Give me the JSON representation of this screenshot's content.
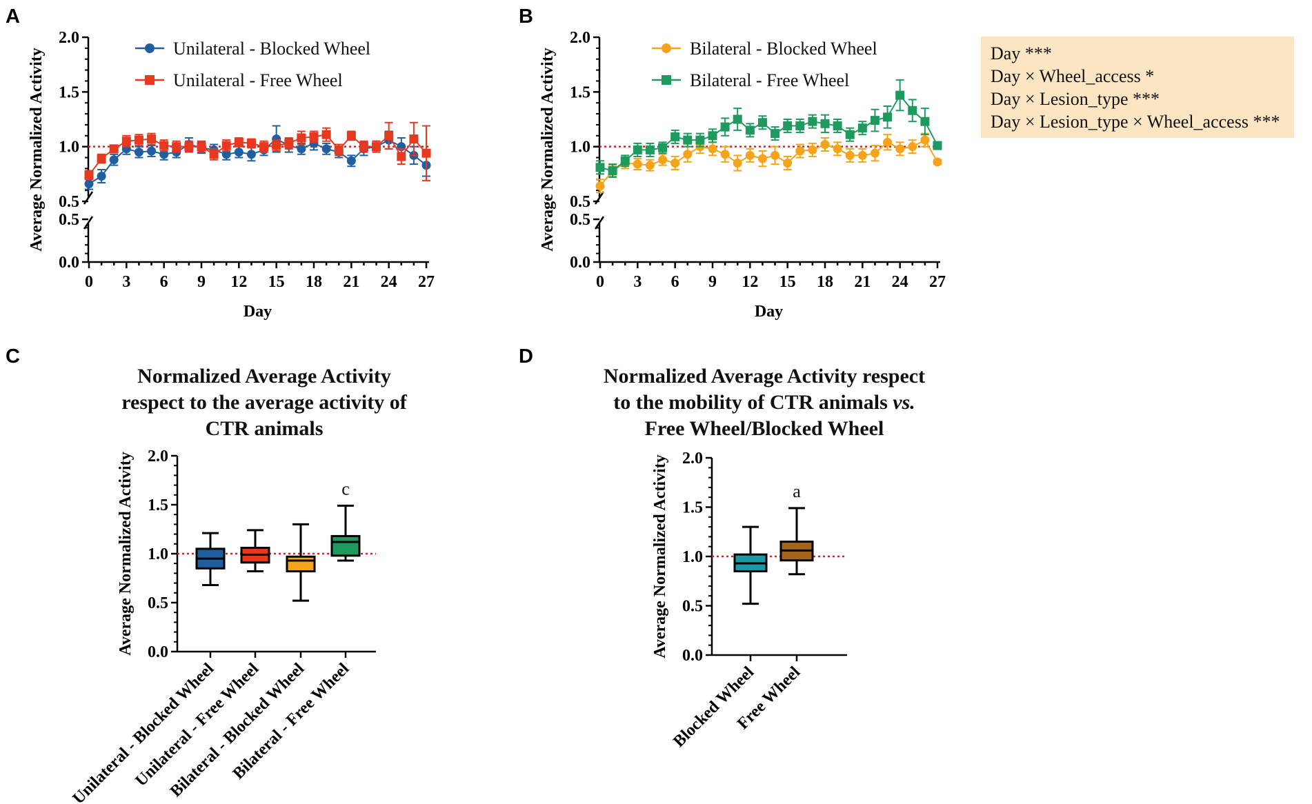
{
  "stats_box": {
    "lines": [
      "Day ***",
      "Day × Wheel_access *",
      "Day × Lesion_type ***",
      "Day × Lesion_type × Wheel_access ***"
    ]
  },
  "colors": {
    "unilateral_blocked": "#1f5fa0",
    "unilateral_free": "#e8381f",
    "bilateral_blocked": "#f5a31a",
    "bilateral_free": "#1f9a5e",
    "blocked_wheel_box": "#1b9aa6",
    "free_wheel_box": "#a2651b",
    "reference_line": "#d42020"
  },
  "chart_data": [
    {
      "panel": "A",
      "type": "line",
      "xlabel": "Day",
      "ylabel": "Average Normalized Activity",
      "x_ticks": [
        "0",
        "3",
        "6",
        "9",
        "12",
        "15",
        "18",
        "21",
        "24",
        "27"
      ],
      "y_ticks_upper": [
        "0.5",
        "1.0",
        "1.5",
        "2.0"
      ],
      "y_ticks_lower": [
        "0.0",
        "0.5"
      ],
      "ylim_upper": [
        0.5,
        2.0
      ],
      "ylim_lower": [
        0.0,
        0.5
      ],
      "reference_line": 1.0,
      "x": [
        0,
        1,
        2,
        3,
        4,
        5,
        6,
        7,
        8,
        9,
        10,
        11,
        12,
        13,
        14,
        15,
        16,
        17,
        18,
        19,
        20,
        21,
        22,
        23,
        24,
        25,
        26,
        27
      ],
      "series": [
        {
          "name": "Unilateral - Blocked Wheel",
          "marker": "circle",
          "values": [
            0.66,
            0.73,
            0.88,
            0.98,
            0.95,
            0.96,
            0.93,
            0.95,
            1.02,
            0.99,
            0.97,
            0.93,
            0.95,
            0.93,
            0.97,
            1.07,
            1.01,
            0.98,
            1.03,
            0.98,
            0.95,
            0.87,
            0.98,
            1.0,
            1.06,
            1.0,
            0.92,
            0.83
          ],
          "errors": [
            0.05,
            0.06,
            0.05,
            0.05,
            0.05,
            0.05,
            0.05,
            0.05,
            0.06,
            0.05,
            0.05,
            0.05,
            0.05,
            0.06,
            0.05,
            0.12,
            0.06,
            0.05,
            0.06,
            0.05,
            0.05,
            0.05,
            0.06,
            0.05,
            0.08,
            0.08,
            0.08,
            0.1
          ]
        },
        {
          "name": "Unilateral - Free Wheel",
          "marker": "square",
          "values": [
            0.74,
            0.89,
            0.98,
            1.05,
            1.06,
            1.07,
            1.01,
            1.0,
            1.0,
            1.0,
            0.93,
            1.01,
            1.04,
            1.03,
            1.0,
            1.01,
            1.03,
            1.08,
            1.09,
            1.11,
            0.97,
            1.1,
            1.0,
            1.0,
            1.1,
            0.91,
            1.07,
            0.94
          ],
          "errors": [
            0.04,
            0.04,
            0.03,
            0.05,
            0.05,
            0.05,
            0.05,
            0.05,
            0.05,
            0.05,
            0.05,
            0.05,
            0.04,
            0.04,
            0.05,
            0.05,
            0.05,
            0.06,
            0.05,
            0.06,
            0.05,
            0.04,
            0.05,
            0.05,
            0.12,
            0.07,
            0.15,
            0.25
          ]
        }
      ]
    },
    {
      "panel": "B",
      "type": "line",
      "xlabel": "Day",
      "ylabel": "Average Normalized Activity",
      "x_ticks": [
        "0",
        "3",
        "6",
        "9",
        "12",
        "15",
        "18",
        "21",
        "24",
        "27"
      ],
      "y_ticks_upper": [
        "0.5",
        "1.0",
        "1.5",
        "2.0"
      ],
      "y_ticks_lower": [
        "0.0",
        "0.5"
      ],
      "ylim_upper": [
        0.5,
        2.0
      ],
      "ylim_lower": [
        0.0,
        0.5
      ],
      "reference_line": 1.0,
      "x": [
        0,
        1,
        2,
        3,
        4,
        5,
        6,
        7,
        8,
        9,
        10,
        11,
        12,
        13,
        14,
        15,
        16,
        17,
        18,
        19,
        20,
        21,
        22,
        23,
        24,
        25,
        26,
        27
      ],
      "series": [
        {
          "name": "Bilateral - Blocked Wheel",
          "marker": "circle",
          "values": [
            0.64,
            0.78,
            0.85,
            0.84,
            0.83,
            0.88,
            0.85,
            0.93,
            1.0,
            0.98,
            0.93,
            0.85,
            0.92,
            0.89,
            0.92,
            0.85,
            0.96,
            0.97,
            1.02,
            0.98,
            0.92,
            0.92,
            0.94,
            1.04,
            0.98,
            1.0,
            1.06,
            0.86
          ],
          "errors": [
            0.06,
            0.05,
            0.05,
            0.05,
            0.05,
            0.05,
            0.06,
            0.07,
            0.06,
            0.06,
            0.07,
            0.07,
            0.06,
            0.07,
            0.08,
            0.06,
            0.06,
            0.06,
            0.06,
            0.06,
            0.06,
            0.06,
            0.07,
            0.07,
            0.06,
            0.06,
            0.06,
            0.02
          ]
        },
        {
          "name": "Bilateral - Free Wheel",
          "marker": "square",
          "values": [
            0.81,
            0.78,
            0.87,
            0.97,
            0.97,
            0.99,
            1.09,
            1.06,
            1.06,
            1.1,
            1.18,
            1.25,
            1.15,
            1.22,
            1.12,
            1.19,
            1.19,
            1.23,
            1.21,
            1.19,
            1.11,
            1.17,
            1.24,
            1.27,
            1.47,
            1.33,
            1.23,
            1.01
          ],
          "errors": [
            0.06,
            0.06,
            0.05,
            0.06,
            0.06,
            0.05,
            0.06,
            0.06,
            0.06,
            0.06,
            0.08,
            0.1,
            0.06,
            0.06,
            0.06,
            0.06,
            0.06,
            0.06,
            0.08,
            0.06,
            0.06,
            0.06,
            0.1,
            0.1,
            0.14,
            0.1,
            0.12,
            0.02
          ]
        }
      ]
    },
    {
      "panel": "C",
      "type": "box",
      "title_lines": [
        "Normalized Average Activity",
        "respect to the average activity of",
        "CTR animals"
      ],
      "ylabel": "Average Normalized Activity",
      "y_ticks": [
        "0.0",
        "0.5",
        "1.0",
        "1.5",
        "2.0"
      ],
      "ylim": [
        0.0,
        2.0
      ],
      "reference_line": 1.0,
      "categories": [
        "Unilateral - Blocked Wheel",
        "Unilateral - Free Wheel",
        "Bilateral - Blocked Wheel",
        "Bilateral - Free Wheel"
      ],
      "boxes": [
        {
          "min": 0.68,
          "q1": 0.85,
          "median": 0.95,
          "q3": 1.05,
          "max": 1.21,
          "color": "#1f5fa0",
          "annotation": ""
        },
        {
          "min": 0.82,
          "q1": 0.91,
          "median": 0.99,
          "q3": 1.06,
          "max": 1.24,
          "color": "#e8381f",
          "annotation": ""
        },
        {
          "min": 0.52,
          "q1": 0.82,
          "median": 0.93,
          "q3": 0.97,
          "max": 1.3,
          "color": "#f5a31a",
          "annotation": ""
        },
        {
          "min": 0.93,
          "q1": 0.98,
          "median": 1.12,
          "q3": 1.18,
          "max": 1.49,
          "color": "#1f9a5e",
          "annotation": "c"
        }
      ]
    },
    {
      "panel": "D",
      "type": "box",
      "title_lines": [
        "Normalized Average Activity respect",
        "to the mobility of CTR animals",
        "Free Wheel/Blocked Wheel"
      ],
      "title_italic": "vs.",
      "ylabel": "Average Normalized Activity",
      "y_ticks": [
        "0.0",
        "0.5",
        "1.0",
        "1.5",
        "2.0"
      ],
      "ylim": [
        0.0,
        2.0
      ],
      "reference_line": 1.0,
      "categories": [
        "Blocked Wheel",
        "Free Wheel"
      ],
      "boxes": [
        {
          "min": 0.52,
          "q1": 0.85,
          "median": 0.93,
          "q3": 1.02,
          "max": 1.3,
          "color": "#1b9aa6",
          "annotation": ""
        },
        {
          "min": 0.82,
          "q1": 0.96,
          "median": 1.06,
          "q3": 1.15,
          "max": 1.49,
          "color": "#a2651b",
          "annotation": "a"
        }
      ]
    }
  ]
}
